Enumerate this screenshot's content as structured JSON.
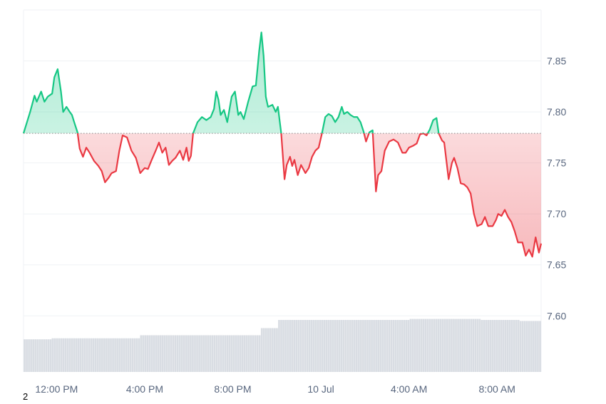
{
  "chart_data": {
    "type": "area",
    "baseline": 7.779,
    "x_tick_labels": [
      "12:00 PM",
      "4:00 PM",
      "8:00 PM",
      "10 Jul",
      "4:00 AM",
      "8:00 AM"
    ],
    "y_tick_labels": [
      "7.85",
      "7.80",
      "7.75",
      "7.70",
      "7.65",
      "7.60"
    ],
    "y_ticks": [
      7.85,
      7.8,
      7.75,
      7.7,
      7.65,
      7.6
    ],
    "ylim": [
      7.545,
      7.9
    ],
    "grid": true,
    "colors": {
      "above": "#16c784",
      "below": "#ea3943",
      "grid": "#eff2f5",
      "volume": "#d9dde3",
      "baseline": "#888888"
    },
    "price_series": [
      [
        0.0,
        7.779
      ],
      [
        0.3,
        7.8
      ],
      [
        0.5,
        7.816
      ],
      [
        0.6,
        7.81
      ],
      [
        0.8,
        7.82
      ],
      [
        0.95,
        7.81
      ],
      [
        1.1,
        7.815
      ],
      [
        1.3,
        7.818
      ],
      [
        1.4,
        7.834
      ],
      [
        1.55,
        7.842
      ],
      [
        1.7,
        7.82
      ],
      [
        1.8,
        7.8
      ],
      [
        1.95,
        7.805
      ],
      [
        2.1,
        7.8
      ],
      [
        2.2,
        7.797
      ],
      [
        2.3,
        7.79
      ],
      [
        2.45,
        7.78
      ],
      [
        2.55,
        7.764
      ],
      [
        2.7,
        7.756
      ],
      [
        2.85,
        7.765
      ],
      [
        3.0,
        7.76
      ],
      [
        3.2,
        7.752
      ],
      [
        3.4,
        7.747
      ],
      [
        3.55,
        7.742
      ],
      [
        3.7,
        7.731
      ],
      [
        3.85,
        7.735
      ],
      [
        4.0,
        7.74
      ],
      [
        4.2,
        7.742
      ],
      [
        4.35,
        7.762
      ],
      [
        4.5,
        7.777
      ],
      [
        4.7,
        7.775
      ],
      [
        4.9,
        7.762
      ],
      [
        5.1,
        7.755
      ],
      [
        5.3,
        7.74
      ],
      [
        5.5,
        7.745
      ],
      [
        5.65,
        7.744
      ],
      [
        5.8,
        7.752
      ],
      [
        6.0,
        7.762
      ],
      [
        6.15,
        7.77
      ],
      [
        6.3,
        7.76
      ],
      [
        6.45,
        7.765
      ],
      [
        6.6,
        7.748
      ],
      [
        6.75,
        7.752
      ],
      [
        6.9,
        7.755
      ],
      [
        7.1,
        7.762
      ],
      [
        7.25,
        7.753
      ],
      [
        7.4,
        7.765
      ],
      [
        7.5,
        7.752
      ],
      [
        7.6,
        7.757
      ],
      [
        7.7,
        7.779
      ],
      [
        7.9,
        7.79
      ],
      [
        8.1,
        7.795
      ],
      [
        8.3,
        7.792
      ],
      [
        8.5,
        7.795
      ],
      [
        8.65,
        7.803
      ],
      [
        8.75,
        7.82
      ],
      [
        8.85,
        7.812
      ],
      [
        8.95,
        7.797
      ],
      [
        9.1,
        7.802
      ],
      [
        9.25,
        7.79
      ],
      [
        9.45,
        7.815
      ],
      [
        9.6,
        7.82
      ],
      [
        9.75,
        7.797
      ],
      [
        9.85,
        7.8
      ],
      [
        10.0,
        7.793
      ],
      [
        10.2,
        7.81
      ],
      [
        10.4,
        7.825
      ],
      [
        10.55,
        7.826
      ],
      [
        10.7,
        7.86
      ],
      [
        10.8,
        7.878
      ],
      [
        10.9,
        7.855
      ],
      [
        11.0,
        7.815
      ],
      [
        11.1,
        7.805
      ],
      [
        11.3,
        7.807
      ],
      [
        11.45,
        7.8
      ],
      [
        11.55,
        7.805
      ],
      [
        11.7,
        7.779
      ],
      [
        11.85,
        7.734
      ],
      [
        11.95,
        7.748
      ],
      [
        12.1,
        7.756
      ],
      [
        12.2,
        7.747
      ],
      [
        12.3,
        7.753
      ],
      [
        12.45,
        7.738
      ],
      [
        12.6,
        7.748
      ],
      [
        12.8,
        7.74
      ],
      [
        12.95,
        7.745
      ],
      [
        13.1,
        7.756
      ],
      [
        13.25,
        7.762
      ],
      [
        13.4,
        7.765
      ],
      [
        13.55,
        7.779
      ],
      [
        13.7,
        7.795
      ],
      [
        13.85,
        7.798
      ],
      [
        14.0,
        7.796
      ],
      [
        14.15,
        7.79
      ],
      [
        14.3,
        7.795
      ],
      [
        14.45,
        7.805
      ],
      [
        14.55,
        7.798
      ],
      [
        14.7,
        7.8
      ],
      [
        14.85,
        7.797
      ],
      [
        15.0,
        7.795
      ],
      [
        15.15,
        7.795
      ],
      [
        15.3,
        7.79
      ],
      [
        15.45,
        7.78
      ],
      [
        15.55,
        7.771
      ],
      [
        15.7,
        7.78
      ],
      [
        15.85,
        7.782
      ],
      [
        16.0,
        7.722
      ],
      [
        16.1,
        7.738
      ],
      [
        16.25,
        7.742
      ],
      [
        16.4,
        7.762
      ],
      [
        16.6,
        7.771
      ],
      [
        16.8,
        7.773
      ],
      [
        17.0,
        7.77
      ],
      [
        17.2,
        7.76
      ],
      [
        17.35,
        7.76
      ],
      [
        17.5,
        7.765
      ],
      [
        17.7,
        7.767
      ],
      [
        17.85,
        7.769
      ],
      [
        18.0,
        7.778
      ],
      [
        18.15,
        7.779
      ],
      [
        18.3,
        7.777
      ],
      [
        18.45,
        7.783
      ],
      [
        18.6,
        7.792
      ],
      [
        18.75,
        7.794
      ],
      [
        18.85,
        7.779
      ],
      [
        19.0,
        7.772
      ],
      [
        19.1,
        7.77
      ],
      [
        19.3,
        7.734
      ],
      [
        19.45,
        7.75
      ],
      [
        19.55,
        7.755
      ],
      [
        19.7,
        7.745
      ],
      [
        19.85,
        7.73
      ],
      [
        20.0,
        7.729
      ],
      [
        20.15,
        7.726
      ],
      [
        20.3,
        7.72
      ],
      [
        20.45,
        7.7
      ],
      [
        20.6,
        7.688
      ],
      [
        20.8,
        7.69
      ],
      [
        20.95,
        7.697
      ],
      [
        21.1,
        7.688
      ],
      [
        21.3,
        7.688
      ],
      [
        21.45,
        7.694
      ],
      [
        21.55,
        7.7
      ],
      [
        21.7,
        7.698
      ],
      [
        21.85,
        7.704
      ],
      [
        22.0,
        7.697
      ],
      [
        22.15,
        7.692
      ],
      [
        22.3,
        7.683
      ],
      [
        22.45,
        7.672
      ],
      [
        22.65,
        7.672
      ],
      [
        22.8,
        7.659
      ],
      [
        22.95,
        7.665
      ],
      [
        23.1,
        7.658
      ],
      [
        23.25,
        7.677
      ],
      [
        23.4,
        7.662
      ],
      [
        23.5,
        7.671
      ]
    ],
    "volume_steps": [
      [
        0,
        7.577
      ],
      [
        1.25,
        7.578
      ],
      [
        5.25,
        7.581
      ],
      [
        10.75,
        7.588
      ],
      [
        11.55,
        7.596
      ],
      [
        16.0,
        7.596
      ],
      [
        17.5,
        7.597
      ],
      [
        20.8,
        7.596
      ],
      [
        22.5,
        7.595
      ],
      [
        23.5,
        7.594
      ]
    ]
  },
  "footer": {
    "corner_label": "2"
  }
}
